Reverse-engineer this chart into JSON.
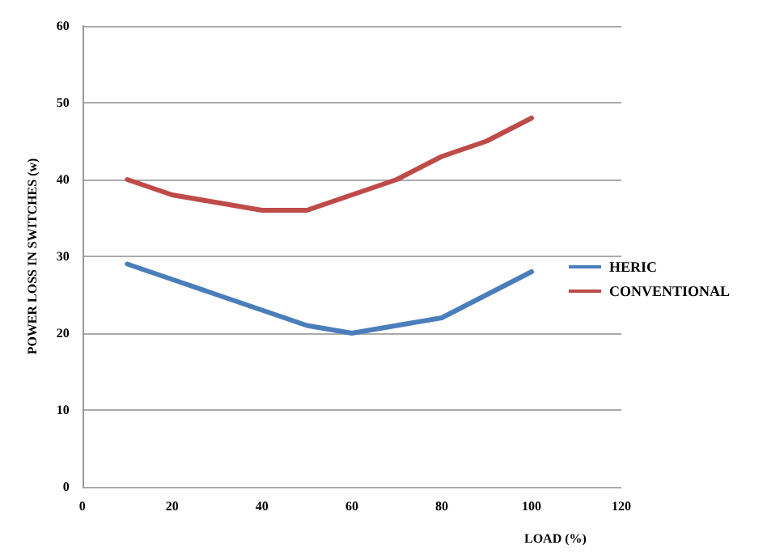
{
  "chart_data": {
    "type": "line",
    "xlabel": "LOAD (%)",
    "ylabel": "POWER LOSS IN SWITCHES (w)",
    "x": [
      10,
      20,
      30,
      40,
      50,
      60,
      70,
      80,
      90,
      100
    ],
    "series": [
      {
        "name": "HERIC",
        "color": "#4a7ebb",
        "values": [
          29,
          27,
          25,
          23,
          21,
          20,
          21,
          22,
          25,
          28
        ]
      },
      {
        "name": "CONVENTIONAL",
        "color": "#be4b48",
        "values": [
          40,
          38,
          37,
          36,
          36,
          38,
          40,
          43,
          45,
          48
        ]
      }
    ],
    "xlim": [
      0,
      120
    ],
    "xticks": [
      0,
      20,
      40,
      60,
      80,
      100,
      120
    ],
    "ylim": [
      0,
      60
    ],
    "yticks": [
      0,
      10,
      20,
      30,
      40,
      50,
      60
    ],
    "grid": "y",
    "legend": "right",
    "marker": "none",
    "line_style": "solid"
  }
}
